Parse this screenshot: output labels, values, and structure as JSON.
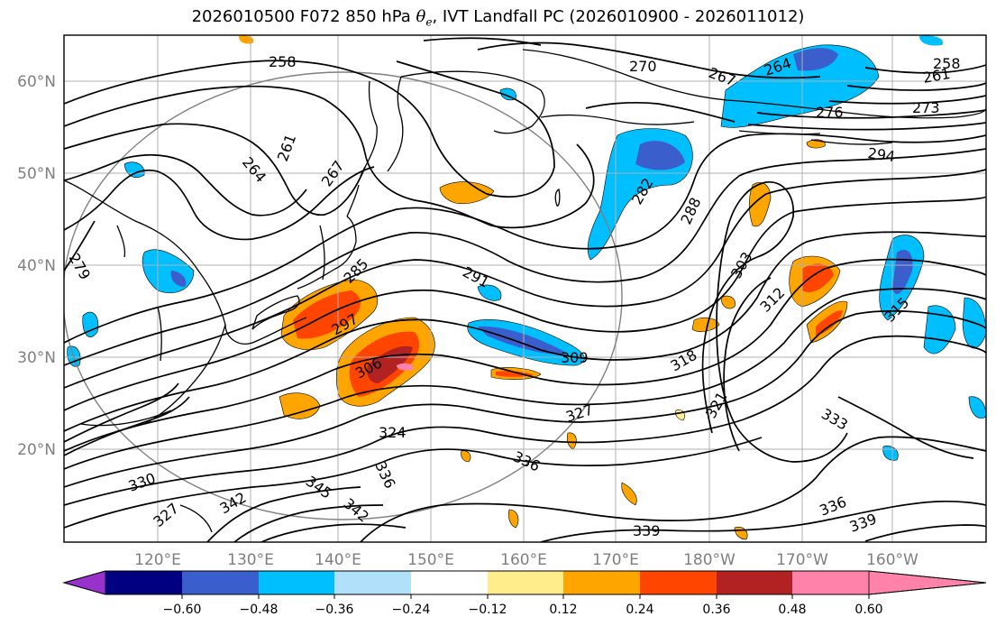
{
  "title": {
    "prefix": "2026010500 F072 850 hPa ",
    "symbol": "θ",
    "subscript": "e",
    "suffix": ", IVT Landfall PC (2026010900 - 2026011012)"
  },
  "map": {
    "lon_labels": [
      "120°E",
      "130°E",
      "140°E",
      "150°E",
      "160°E",
      "170°E",
      "180°W",
      "170°W",
      "160°W"
    ],
    "lat_labels": [
      "60°N",
      "50°N",
      "40°N",
      "30°N",
      "20°N"
    ],
    "contour_labels": [
      "258",
      "270",
      "267",
      "264",
      "261",
      "264",
      "267",
      "279",
      "285",
      "291",
      "297",
      "306",
      "309",
      "282",
      "288",
      "303",
      "312",
      "315",
      "318",
      "321",
      "327",
      "324",
      "333",
      "336",
      "336",
      "339",
      "336",
      "339",
      "342",
      "345",
      "342",
      "330",
      "327",
      "276",
      "273",
      "294",
      "261",
      "258"
    ]
  },
  "colorbar": {
    "tick_labels": [
      "−0.60",
      "−0.48",
      "−0.36",
      "−0.24",
      "−0.12",
      "0.12",
      "0.24",
      "0.36",
      "0.48",
      "0.60"
    ],
    "colors": [
      "#9932cc",
      "#000080",
      "#3a5fcd",
      "#00bfff",
      "#b0e0fa",
      "#ffffff",
      "#ffec8b",
      "#ffa500",
      "#ff4500",
      "#b22222",
      "#ff82ab"
    ]
  }
}
